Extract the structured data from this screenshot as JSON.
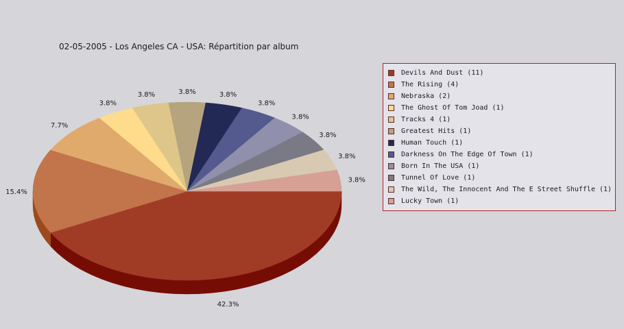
{
  "chart_data": {
    "type": "pie",
    "title": "02-05-2005 - Los Angeles CA - USA:  Répartition par album",
    "legend_position": "right",
    "slices": [
      {
        "label": "Devils And Dust",
        "legend": "Devils And Dust (11)",
        "count": 11,
        "percent_label": "42.3%",
        "color": "#a03c26",
        "side_color": "#760d05"
      },
      {
        "label": "The Rising",
        "legend": "The Rising (4)",
        "count": 4,
        "percent_label": "15.4%",
        "color": "#c2744a",
        "side_color": "#9c4a1c"
      },
      {
        "label": "Nebraska",
        "legend": "Nebraska (2)",
        "count": 2,
        "percent_label": "7.7%",
        "color": "#e0aa6c",
        "side_color": "#b07a3e"
      },
      {
        "label": "The Ghost Of Tom Joad",
        "legend": "The Ghost Of Tom Joad (1)",
        "count": 1,
        "percent_label": "3.8%",
        "color": "#fedc8c",
        "side_color": "#c9a85a"
      },
      {
        "label": "Tracks 4",
        "legend": "Tracks 4 (1)",
        "count": 1,
        "percent_label": "3.8%",
        "color": "#dec68a",
        "side_color": "#ab955c"
      },
      {
        "label": "Greatest Hits",
        "legend": "Greatest Hits (1)",
        "count": 1,
        "percent_label": "3.8%",
        "color": "#b6a47e",
        "side_color": "#877652"
      },
      {
        "label": "Human Touch",
        "legend": "Human Touch (1)",
        "count": 1,
        "percent_label": "3.8%",
        "color": "#222955",
        "side_color": "#12163a"
      },
      {
        "label": "Darkness On The Edge Of Town",
        "legend": "Darkness On The Edge Of Town (1)",
        "count": 1,
        "percent_label": "3.8%",
        "color": "#545a8e",
        "side_color": "#353a66"
      },
      {
        "label": "Born In The USA",
        "legend": "Born In The USA (1)",
        "count": 1,
        "percent_label": "3.8%",
        "color": "#9090ac",
        "side_color": "#686882"
      },
      {
        "label": "Tunnel Of Love",
        "legend": "Tunnel Of Love (1)",
        "count": 1,
        "percent_label": "3.8%",
        "color": "#7a7a86",
        "side_color": "#55555f"
      },
      {
        "label": "The Wild, The Innocent And The E Street Shuffle",
        "legend": "The Wild, The Innocent And The E Street Shuffle (1)",
        "count": 1,
        "percent_label": "3.8%",
        "color": "#d8cab2",
        "side_color": "#a89a84"
      },
      {
        "label": "Lucky Town",
        "legend": "Lucky Town (1)",
        "count": 1,
        "percent_label": "3.8%",
        "color": "#d6a095",
        "side_color": "#a8746a"
      }
    ]
  }
}
